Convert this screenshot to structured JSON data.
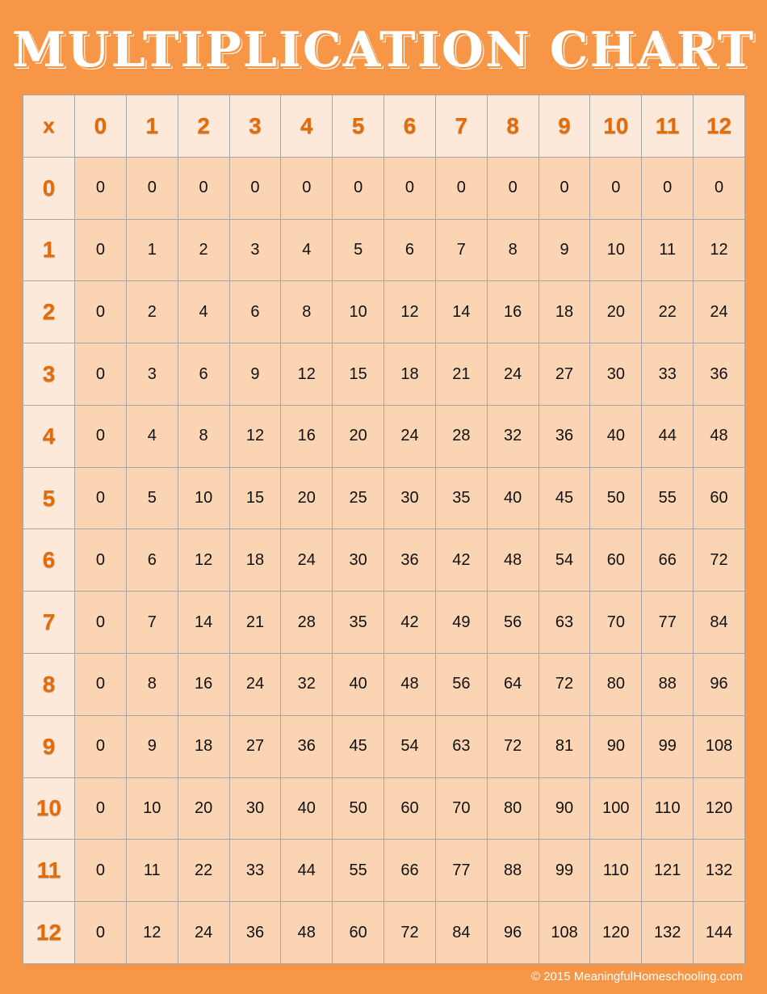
{
  "title": "MULTIPLICATION CHART",
  "table": {
    "corner": "x",
    "columns": [
      "0",
      "1",
      "2",
      "3",
      "4",
      "5",
      "6",
      "7",
      "8",
      "9",
      "10",
      "11",
      "12"
    ],
    "rows": [
      {
        "label": "0",
        "values": [
          "0",
          "0",
          "0",
          "0",
          "0",
          "0",
          "0",
          "0",
          "0",
          "0",
          "0",
          "0",
          "0"
        ]
      },
      {
        "label": "1",
        "values": [
          "0",
          "1",
          "2",
          "3",
          "4",
          "5",
          "6",
          "7",
          "8",
          "9",
          "10",
          "11",
          "12"
        ]
      },
      {
        "label": "2",
        "values": [
          "0",
          "2",
          "4",
          "6",
          "8",
          "10",
          "12",
          "14",
          "16",
          "18",
          "20",
          "22",
          "24"
        ]
      },
      {
        "label": "3",
        "values": [
          "0",
          "3",
          "6",
          "9",
          "12",
          "15",
          "18",
          "21",
          "24",
          "27",
          "30",
          "33",
          "36"
        ]
      },
      {
        "label": "4",
        "values": [
          "0",
          "4",
          "8",
          "12",
          "16",
          "20",
          "24",
          "28",
          "32",
          "36",
          "40",
          "44",
          "48"
        ]
      },
      {
        "label": "5",
        "values": [
          "0",
          "5",
          "10",
          "15",
          "20",
          "25",
          "30",
          "35",
          "40",
          "45",
          "50",
          "55",
          "60"
        ]
      },
      {
        "label": "6",
        "values": [
          "0",
          "6",
          "12",
          "18",
          "24",
          "30",
          "36",
          "42",
          "48",
          "54",
          "60",
          "66",
          "72"
        ]
      },
      {
        "label": "7",
        "values": [
          "0",
          "7",
          "14",
          "21",
          "28",
          "35",
          "42",
          "49",
          "56",
          "63",
          "70",
          "77",
          "84"
        ]
      },
      {
        "label": "8",
        "values": [
          "0",
          "8",
          "16",
          "24",
          "32",
          "40",
          "48",
          "56",
          "64",
          "72",
          "80",
          "88",
          "96"
        ]
      },
      {
        "label": "9",
        "values": [
          "0",
          "9",
          "18",
          "27",
          "36",
          "45",
          "54",
          "63",
          "72",
          "81",
          "90",
          "99",
          "108"
        ]
      },
      {
        "label": "10",
        "values": [
          "0",
          "10",
          "20",
          "30",
          "40",
          "50",
          "60",
          "70",
          "80",
          "90",
          "100",
          "110",
          "120"
        ]
      },
      {
        "label": "11",
        "values": [
          "0",
          "11",
          "22",
          "33",
          "44",
          "55",
          "66",
          "77",
          "88",
          "99",
          "110",
          "121",
          "132"
        ]
      },
      {
        "label": "12",
        "values": [
          "0",
          "12",
          "24",
          "36",
          "48",
          "60",
          "72",
          "84",
          "96",
          "108",
          "120",
          "132",
          "144"
        ]
      }
    ]
  },
  "footer": "© 2015 MeaningfulHomeschooling.com",
  "colors": {
    "background": "#F79646",
    "header_cell": "#FDE9D9",
    "body_cell": "#FBD4B4",
    "header_text": "#E36C09",
    "border": "#A6A6A6"
  }
}
